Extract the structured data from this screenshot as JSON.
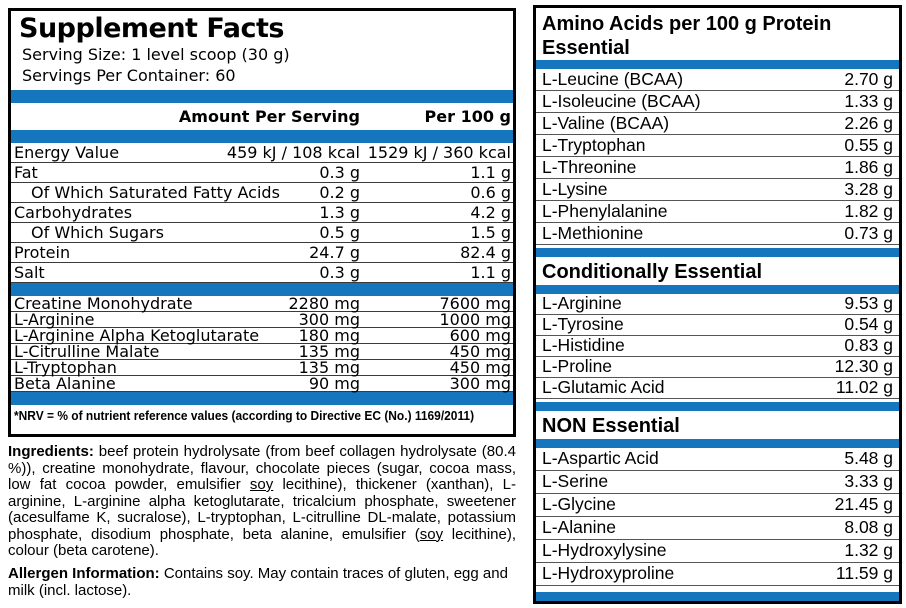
{
  "colors": {
    "accent_blue": "#1576bd",
    "panel_border": "#000000",
    "row_line": "#3a3a3a"
  },
  "left_panel": {
    "title": "Supplement Facts",
    "serving_size_label": "Serving Size:",
    "serving_size_value": "1 level scoop (30 g)",
    "servings_label": "Servings Per Container:",
    "servings_value": "60",
    "col_header_amount": "Amount Per Serving",
    "col_header_per100": "Per 100 g",
    "nutrition_rows": [
      {
        "name": "Energy Value",
        "per_serving": "459 kJ / 108 kcal",
        "per_100g": "1529 kJ / 360 kcal"
      },
      {
        "name": "Fat",
        "per_serving": "0.3 g",
        "per_100g": "1.1 g"
      },
      {
        "name": "Of Which Saturated Fatty Acids",
        "indent": true,
        "per_serving": "0.2 g",
        "per_100g": "0.6 g"
      },
      {
        "name": "Carbohydrates",
        "per_serving": "1.3 g",
        "per_100g": "4.2 g"
      },
      {
        "name": "Of Which Sugars",
        "indent": true,
        "per_serving": "0.5 g",
        "per_100g": "1.5 g"
      },
      {
        "name": "Protein",
        "per_serving": "24.7 g",
        "per_100g": "82.4 g"
      },
      {
        "name": "Salt",
        "per_serving": "0.3 g",
        "per_100g": "1.1 g"
      }
    ],
    "supplement_rows": [
      {
        "name": "Creatine Monohydrate",
        "per_serving": "2280 mg",
        "per_100g": "7600 mg"
      },
      {
        "name": "L-Arginine",
        "per_serving": "300 mg",
        "per_100g": "1000 mg"
      },
      {
        "name": "L-Arginine Alpha Ketoglutarate",
        "per_serving": "180 mg",
        "per_100g": "600 mg"
      },
      {
        "name": "L-Citrulline Malate",
        "per_serving": "135 mg",
        "per_100g": "450 mg"
      },
      {
        "name": "L-Tryptophan",
        "per_serving": "135 mg",
        "per_100g": "450 mg"
      },
      {
        "name": "Beta Alanine",
        "per_serving": "90 mg",
        "per_100g": "300 mg"
      }
    ],
    "footnote": "*NRV = % of nutrient reference values (according to Directive EC (No.) 1169/2011)"
  },
  "ingredients": {
    "segments": [
      {
        "t": "Ingredients:",
        "b": true
      },
      {
        "t": " beef protein hydrolysate (from beef collagen hydrolysate (80.4 %)), creatine monohydrate, flavour, chocolate pieces (sugar, cocoa mass, low fat cocoa powder, emulsifier "
      },
      {
        "t": "soy",
        "u": true
      },
      {
        "t": " lecithine), thickener (xanthan), L-arginine, L-arginine alpha ketoglutarate, tricalcium phosphate, sweetener (acesulfame K, sucralose), L-tryptophan, L-citrulline DL-malate, potassium phosphate, disodium phosphate, beta alanine, emulsifier ("
      },
      {
        "t": "soy",
        "u": true
      },
      {
        "t": " lecithine), colour (beta carotene)."
      }
    ]
  },
  "allergen": {
    "segments": [
      {
        "t": "Allergen Information:",
        "b": true
      },
      {
        "t": " Contains soy. May contain traces of gluten, egg and milk (incl. lactose)."
      }
    ]
  },
  "right_panel": {
    "title": "Amino Acids per 100 g Protein",
    "sections": [
      {
        "name": "Essential",
        "rows": [
          {
            "name": "L-Leucine (BCAA)",
            "value": "2.70 g"
          },
          {
            "name": "L-Isoleucine (BCAA)",
            "value": "1.33 g"
          },
          {
            "name": "L-Valine (BCAA)",
            "value": "2.26 g"
          },
          {
            "name": "L-Tryptophan",
            "value": "0.55 g"
          },
          {
            "name": "L-Threonine",
            "value": "1.86 g"
          },
          {
            "name": "L-Lysine",
            "value": "3.28 g"
          },
          {
            "name": "L-Phenylalanine",
            "value": "1.82 g"
          },
          {
            "name": "L-Methionine",
            "value": "0.73 g"
          }
        ]
      },
      {
        "name": "Conditionally Essential",
        "rows": [
          {
            "name": "L-Arginine",
            "value": "9.53 g"
          },
          {
            "name": "L-Tyrosine",
            "value": "0.54 g"
          },
          {
            "name": "L-Histidine",
            "value": "0.83 g"
          },
          {
            "name": "L-Proline",
            "value": "12.30 g"
          },
          {
            "name": "L-Glutamic Acid",
            "value": "11.02 g"
          }
        ]
      },
      {
        "name": "NON Essential",
        "rows": [
          {
            "name": "L-Aspartic Acid",
            "value": "5.48 g"
          },
          {
            "name": "L-Serine",
            "value": "3.33 g"
          },
          {
            "name": "L-Glycine",
            "value": "21.45 g"
          },
          {
            "name": "L-Alanine",
            "value": "8.08 g"
          },
          {
            "name": "L-Hydroxylysine",
            "value": "1.32 g"
          },
          {
            "name": "L-Hydroxyproline",
            "value": "11.59 g"
          }
        ]
      }
    ]
  }
}
